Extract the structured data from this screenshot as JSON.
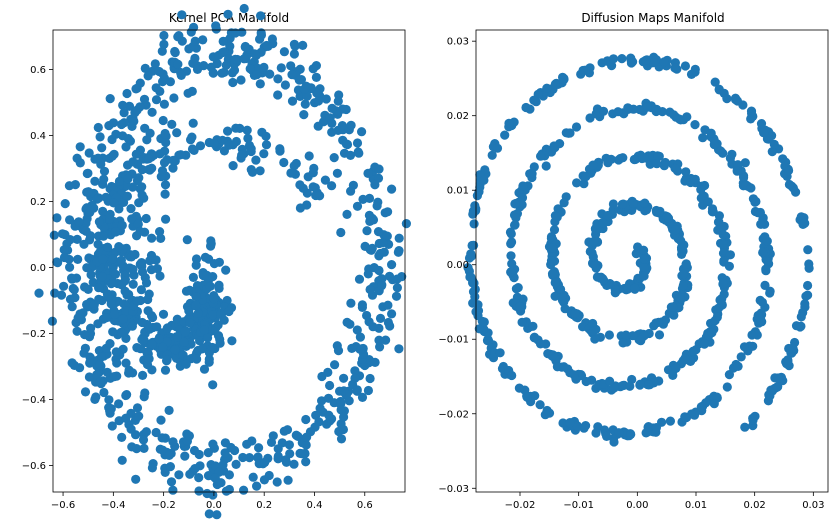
{
  "chart_data": [
    {
      "type": "scatter",
      "title": "Kernel PCA Manifold",
      "xlabel": "",
      "ylabel": "",
      "xlim": [
        -0.64,
        0.76
      ],
      "ylim": [
        -0.68,
        0.72
      ],
      "xticks": [
        -0.6,
        -0.4,
        -0.2,
        0.0,
        0.2,
        0.4,
        0.6
      ],
      "xtick_labels": [
        "−0.6",
        "−0.4",
        "−0.2",
        "0.0",
        "0.2",
        "0.4",
        "0.6"
      ],
      "yticks": [
        -0.6,
        -0.4,
        -0.2,
        0.0,
        0.2,
        0.4,
        0.6
      ],
      "ytick_labels": [
        "−0.6",
        "−0.4",
        "−0.2",
        "0.0",
        "0.2",
        "0.4",
        "0.6"
      ],
      "color": "#1f77b4",
      "grid": false,
      "shape": "noisy spiral inside an outer elliptical ring; ring spans x -0.58..0.72, y -0.62..0.67; inner arm curls from (0.33,0.28) to core near (-0.1,-0.1)"
    },
    {
      "type": "scatter",
      "title": "Diffusion Maps Manifold",
      "xlabel": "",
      "ylabel": "",
      "xlim": [
        -0.0275,
        0.0325
      ],
      "ylim": [
        -0.0305,
        0.0315
      ],
      "xticks": [
        -0.02,
        -0.01,
        0.0,
        0.01,
        0.02,
        0.03
      ],
      "xtick_labels": [
        "−0.02",
        "−0.01",
        "0.00",
        "0.01",
        "0.02",
        "0.03"
      ],
      "yticks": [
        -0.03,
        -0.02,
        -0.01,
        0.0,
        0.01,
        0.02,
        0.03
      ],
      "ytick_labels": [
        "−0.03",
        "−0.02",
        "−0.01",
        "0.00",
        "0.01",
        "0.02",
        "0.03"
      ],
      "color": "#1f77b4",
      "grid": false,
      "shape": "clean spiral with about 4 turns centered near (-0.002, 0.001), outer end near (0.019, 0.028), outermost extent x -0.025..0.031, y -0.028..0.028"
    }
  ]
}
